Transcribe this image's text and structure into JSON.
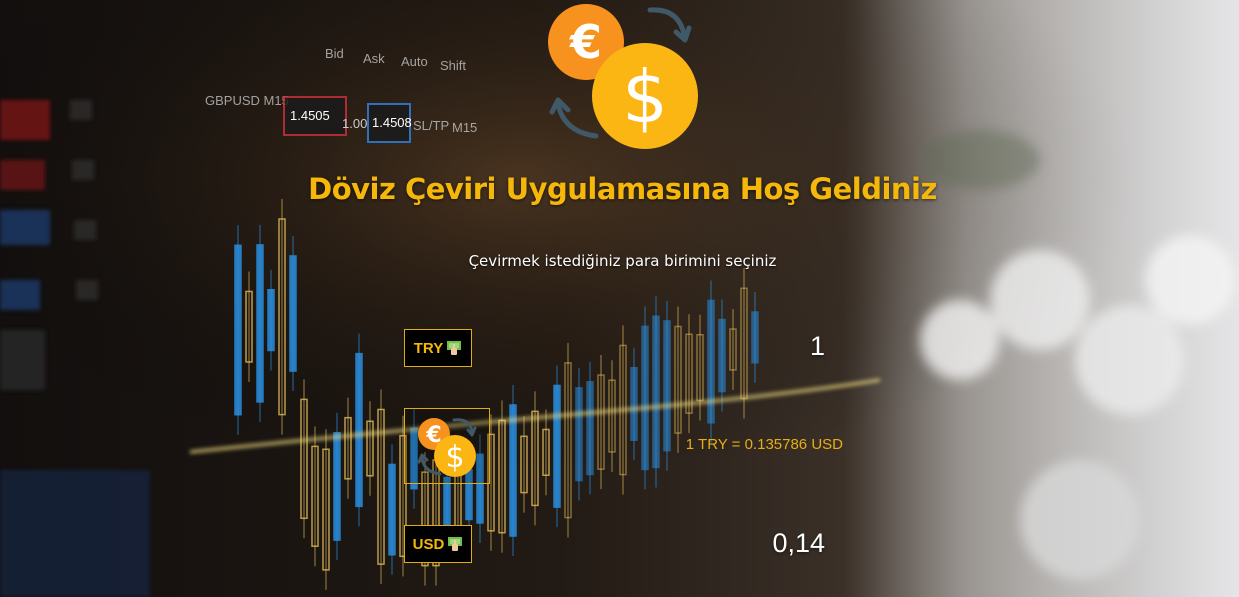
{
  "app": {
    "title": "Döviz Çeviri Uygulamasına Hoş Geldiniz",
    "subtitle": "Çevirmek istediğiniz para birimini seçiniz",
    "logo_icon": "currency-exchange-icon"
  },
  "converter": {
    "from": {
      "code": "TRY",
      "icon": "money-icon",
      "amount": "1"
    },
    "to": {
      "code": "USD",
      "icon": "money-icon",
      "amount": "0,14"
    },
    "swap_icon": "currency-exchange-icon",
    "rate_text": "1 TRY = 0.135786 USD"
  },
  "background": {
    "ticker_labels": [
      "Bid",
      "Ask",
      "Auto",
      "Shift",
      "GBPUSD M15",
      "1.4505",
      "1.00",
      "1.4508",
      "SL/TP",
      "M15"
    ]
  },
  "colors": {
    "accent": "#f5b80a",
    "text": "#ffffff",
    "button_bg": "#000000"
  }
}
